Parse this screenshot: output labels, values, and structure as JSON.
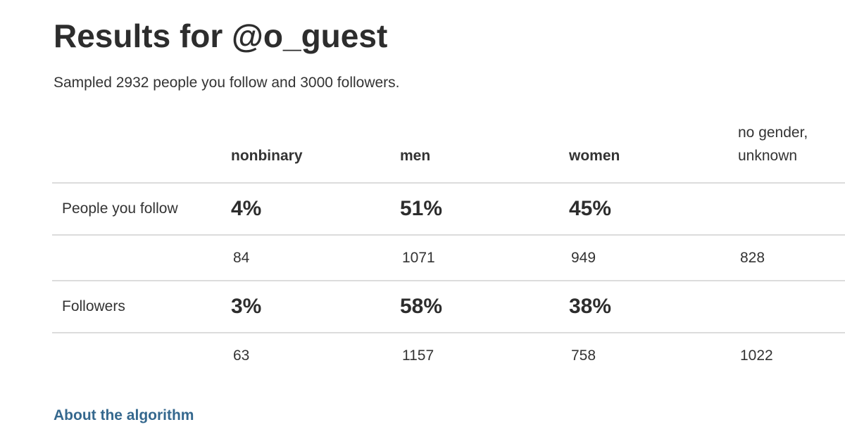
{
  "page": {
    "title": "Results for @o_guest",
    "subtitle": "Sampled 2932 people you follow and 3000 followers.",
    "about_link_label": "About the algorithm"
  },
  "table": {
    "columns": [
      "nonbinary",
      "men",
      "women",
      "no gender, unknown"
    ],
    "rows": [
      {
        "label": "People you follow",
        "type": "percent",
        "values": [
          "4%",
          "51%",
          "45%",
          ""
        ]
      },
      {
        "label": "",
        "type": "count",
        "values": [
          "84",
          "1071",
          "949",
          "828"
        ]
      },
      {
        "label": "Followers",
        "type": "percent",
        "values": [
          "3%",
          "58%",
          "38%",
          ""
        ]
      },
      {
        "label": "",
        "type": "count",
        "values": [
          "63",
          "1157",
          "758",
          "1022"
        ]
      }
    ]
  },
  "colors": {
    "text": "#333333",
    "rule": "#dcdcdc",
    "link": "#35688e"
  }
}
